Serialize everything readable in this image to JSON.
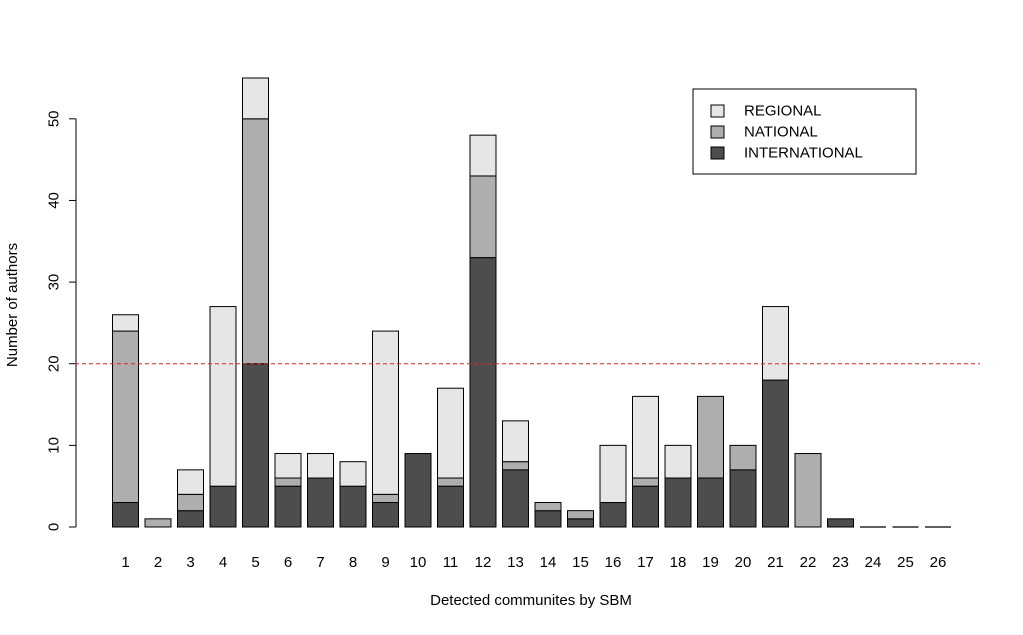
{
  "chart_data": {
    "type": "bar",
    "stacked": true,
    "title": "",
    "xlabel": "Detected communites by SBM",
    "ylabel": "Number of authors",
    "ylim": [
      0,
      55
    ],
    "yticks": [
      0,
      10,
      20,
      30,
      40,
      50
    ],
    "grid": false,
    "categories": [
      "1",
      "2",
      "3",
      "4",
      "5",
      "6",
      "7",
      "8",
      "9",
      "10",
      "11",
      "12",
      "13",
      "14",
      "15",
      "16",
      "17",
      "18",
      "19",
      "20",
      "21",
      "22",
      "23",
      "24",
      "25",
      "26"
    ],
    "series": [
      {
        "name": "INTERNATIONAL",
        "color": "#4d4d4d",
        "values": [
          3,
          0,
          2,
          5,
          20,
          5,
          6,
          5,
          3,
          9,
          5,
          33,
          7,
          2,
          1,
          3,
          5,
          6,
          6,
          7,
          18,
          0,
          1,
          0,
          0,
          0
        ]
      },
      {
        "name": "NATIONAL",
        "color": "#aeaeae",
        "values": [
          21,
          1,
          2,
          0,
          30,
          1,
          0,
          0,
          1,
          0,
          1,
          10,
          1,
          1,
          1,
          0,
          1,
          0,
          10,
          3,
          0,
          9,
          0,
          0,
          0,
          0
        ]
      },
      {
        "name": "REGIONAL",
        "color": "#e6e6e6",
        "values": [
          2,
          0,
          3,
          22,
          5,
          3,
          3,
          3,
          20,
          0,
          11,
          5,
          5,
          0,
          0,
          7,
          10,
          4,
          0,
          0,
          9,
          0,
          0,
          0,
          0,
          0
        ]
      }
    ],
    "legend": {
      "position": "top-right",
      "entries": [
        "REGIONAL",
        "NATIONAL",
        "INTERNATIONAL"
      ]
    },
    "reference_line": {
      "y": 20,
      "color": "#e0202a",
      "style": "dashed"
    }
  }
}
